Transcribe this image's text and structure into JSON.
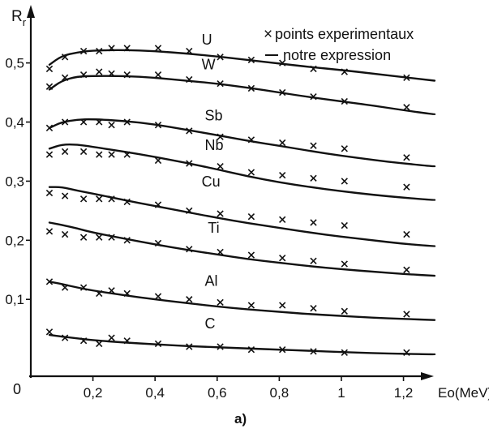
{
  "chart_data": {
    "type": "line",
    "ylabel_main": "R",
    "ylabel_sub": "r",
    "xlabel": "Eo(MeV)",
    "caption": "a)",
    "xlim": [
      0,
      1.35
    ],
    "ylim": [
      -0.03,
      0.59
    ],
    "x_ticks": [
      0.2,
      0.4,
      0.6,
      0.8,
      1.0,
      1.2
    ],
    "x_tick_labels": [
      "0,2",
      "0,4",
      "0,6",
      "0,8",
      "1",
      "1,2"
    ],
    "y_ticks": [
      0.1,
      0.2,
      0.3,
      0.4,
      0.5
    ],
    "y_tick_labels": [
      "0,1",
      "0,2",
      "0,3",
      "0,4",
      "0,5"
    ],
    "origin_label": "0",
    "legend": {
      "markers_label": "points experimentaux",
      "line_label": "notre expression",
      "placement": "top-right"
    },
    "series": [
      {
        "name": "U",
        "curve": {
          "x": [
            0.06,
            0.1,
            0.15,
            0.2,
            0.3,
            0.4,
            0.5,
            0.6,
            0.7,
            0.8,
            0.9,
            1.0,
            1.1,
            1.2,
            1.3
          ],
          "y": [
            0.497,
            0.512,
            0.518,
            0.521,
            0.522,
            0.52,
            0.516,
            0.511,
            0.505,
            0.499,
            0.493,
            0.488,
            0.482,
            0.476,
            0.47
          ]
        },
        "points": {
          "x": [
            0.06,
            0.11,
            0.17,
            0.22,
            0.26,
            0.31,
            0.41,
            0.51,
            0.61,
            0.71,
            0.81,
            0.91,
            1.01,
            1.21
          ],
          "y": [
            0.49,
            0.51,
            0.52,
            0.52,
            0.525,
            0.525,
            0.525,
            0.52,
            0.51,
            0.505,
            0.5,
            0.49,
            0.485,
            0.475
          ]
        }
      },
      {
        "name": "W",
        "curve": {
          "x": [
            0.06,
            0.1,
            0.15,
            0.2,
            0.3,
            0.4,
            0.5,
            0.6,
            0.7,
            0.8,
            0.9,
            1.0,
            1.1,
            1.2,
            1.3
          ],
          "y": [
            0.455,
            0.47,
            0.477,
            0.478,
            0.478,
            0.475,
            0.47,
            0.465,
            0.458,
            0.45,
            0.442,
            0.435,
            0.428,
            0.42,
            0.413
          ]
        },
        "points": {
          "x": [
            0.06,
            0.11,
            0.17,
            0.22,
            0.26,
            0.31,
            0.41,
            0.51,
            0.61,
            0.71,
            0.81,
            0.91,
            1.01,
            1.21
          ],
          "y": [
            0.46,
            0.475,
            0.48,
            0.485,
            0.482,
            0.48,
            0.48,
            0.472,
            0.465,
            0.457,
            0.45,
            0.443,
            0.435,
            0.425
          ]
        }
      },
      {
        "name": "Sb",
        "curve": {
          "x": [
            0.06,
            0.1,
            0.15,
            0.2,
            0.3,
            0.4,
            0.5,
            0.6,
            0.7,
            0.8,
            0.9,
            1.0,
            1.1,
            1.2,
            1.3
          ],
          "y": [
            0.39,
            0.4,
            0.404,
            0.405,
            0.402,
            0.396,
            0.387,
            0.378,
            0.368,
            0.36,
            0.351,
            0.343,
            0.336,
            0.33,
            0.325
          ]
        },
        "points": {
          "x": [
            0.06,
            0.11,
            0.17,
            0.22,
            0.26,
            0.31,
            0.41,
            0.51,
            0.61,
            0.71,
            0.81,
            0.91,
            1.01,
            1.21
          ],
          "y": [
            0.39,
            0.4,
            0.4,
            0.4,
            0.395,
            0.4,
            0.395,
            0.385,
            0.375,
            0.37,
            0.365,
            0.36,
            0.355,
            0.34
          ]
        }
      },
      {
        "name": "Nb",
        "curve": {
          "x": [
            0.06,
            0.1,
            0.15,
            0.2,
            0.3,
            0.4,
            0.5,
            0.6,
            0.7,
            0.8,
            0.9,
            1.0,
            1.1,
            1.2,
            1.3
          ],
          "y": [
            0.355,
            0.362,
            0.362,
            0.358,
            0.35,
            0.341,
            0.331,
            0.32,
            0.308,
            0.298,
            0.29,
            0.283,
            0.277,
            0.272,
            0.268
          ]
        },
        "points": {
          "x": [
            0.06,
            0.11,
            0.17,
            0.22,
            0.26,
            0.31,
            0.41,
            0.51,
            0.61,
            0.71,
            0.81,
            0.91,
            1.01,
            1.21
          ],
          "y": [
            0.345,
            0.35,
            0.35,
            0.345,
            0.345,
            0.345,
            0.335,
            0.33,
            0.325,
            0.315,
            0.31,
            0.305,
            0.3,
            0.29
          ]
        }
      },
      {
        "name": "Cu",
        "curve": {
          "x": [
            0.06,
            0.1,
            0.15,
            0.2,
            0.3,
            0.4,
            0.5,
            0.6,
            0.7,
            0.8,
            0.9,
            1.0,
            1.1,
            1.2,
            1.3
          ],
          "y": [
            0.29,
            0.29,
            0.284,
            0.279,
            0.268,
            0.258,
            0.248,
            0.238,
            0.229,
            0.221,
            0.213,
            0.206,
            0.2,
            0.194,
            0.19
          ]
        },
        "points": {
          "x": [
            0.06,
            0.11,
            0.17,
            0.22,
            0.26,
            0.31,
            0.41,
            0.51,
            0.61,
            0.71,
            0.81,
            0.91,
            1.01,
            1.21
          ],
          "y": [
            0.28,
            0.275,
            0.27,
            0.27,
            0.27,
            0.265,
            0.26,
            0.25,
            0.245,
            0.24,
            0.235,
            0.23,
            0.225,
            0.21
          ]
        }
      },
      {
        "name": "Ti",
        "curve": {
          "x": [
            0.06,
            0.1,
            0.15,
            0.2,
            0.3,
            0.4,
            0.5,
            0.6,
            0.7,
            0.8,
            0.9,
            1.0,
            1.1,
            1.2,
            1.3
          ],
          "y": [
            0.23,
            0.226,
            0.22,
            0.213,
            0.203,
            0.193,
            0.184,
            0.176,
            0.168,
            0.162,
            0.156,
            0.151,
            0.147,
            0.143,
            0.14
          ]
        },
        "points": {
          "x": [
            0.06,
            0.11,
            0.17,
            0.22,
            0.26,
            0.31,
            0.41,
            0.51,
            0.61,
            0.71,
            0.81,
            0.91,
            1.01,
            1.21
          ],
          "y": [
            0.215,
            0.21,
            0.205,
            0.205,
            0.205,
            0.2,
            0.195,
            0.185,
            0.18,
            0.175,
            0.17,
            0.165,
            0.16,
            0.15
          ]
        }
      },
      {
        "name": "Al",
        "curve": {
          "x": [
            0.06,
            0.1,
            0.15,
            0.2,
            0.3,
            0.4,
            0.5,
            0.6,
            0.7,
            0.8,
            0.9,
            1.0,
            1.1,
            1.2,
            1.3
          ],
          "y": [
            0.13,
            0.126,
            0.12,
            0.115,
            0.107,
            0.1,
            0.094,
            0.088,
            0.083,
            0.079,
            0.075,
            0.072,
            0.069,
            0.067,
            0.065
          ]
        },
        "points": {
          "x": [
            0.06,
            0.11,
            0.17,
            0.22,
            0.26,
            0.31,
            0.41,
            0.51,
            0.61,
            0.71,
            0.81,
            0.91,
            1.01,
            1.21
          ],
          "y": [
            0.13,
            0.12,
            0.12,
            0.11,
            0.115,
            0.11,
            0.105,
            0.1,
            0.095,
            0.09,
            0.09,
            0.085,
            0.08,
            0.075
          ]
        }
      },
      {
        "name": "C",
        "curve": {
          "x": [
            0.06,
            0.1,
            0.15,
            0.2,
            0.3,
            0.4,
            0.5,
            0.6,
            0.7,
            0.8,
            0.9,
            1.0,
            1.1,
            1.2,
            1.3
          ],
          "y": [
            0.04,
            0.037,
            0.034,
            0.031,
            0.027,
            0.024,
            0.021,
            0.019,
            0.017,
            0.015,
            0.013,
            0.011,
            0.009,
            0.008,
            0.007
          ]
        },
        "points": {
          "x": [
            0.06,
            0.11,
            0.17,
            0.22,
            0.26,
            0.31,
            0.41,
            0.51,
            0.61,
            0.71,
            0.81,
            0.91,
            1.01,
            1.21
          ],
          "y": [
            0.045,
            0.035,
            0.03,
            0.025,
            0.035,
            0.03,
            0.025,
            0.02,
            0.02,
            0.015,
            0.015,
            0.012,
            0.01,
            0.01
          ]
        }
      }
    ]
  }
}
